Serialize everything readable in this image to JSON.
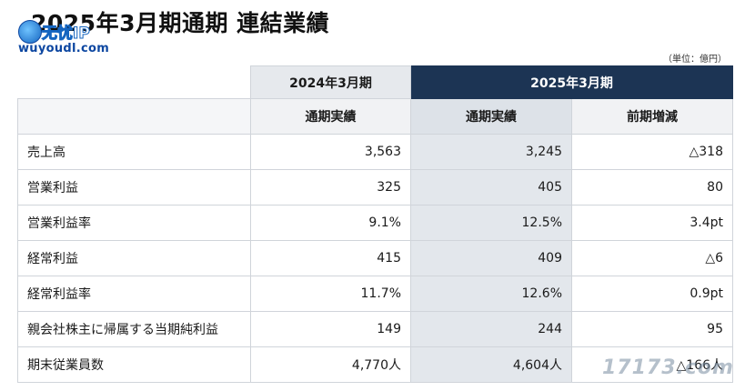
{
  "title": "2025年3月期通期 連結業績",
  "watermark": {
    "site_cn": "无忧IP",
    "site_url": "wuyoudl.com",
    "bottom": "17173.com"
  },
  "unit_note": "（単位：億円）",
  "header": {
    "fy2024": "2024年3月期",
    "fy2025": "2025年3月期",
    "col_actual_prev": "通期実績",
    "col_actual_cur": "通期実績",
    "col_change": "前期増減"
  },
  "rows": [
    {
      "label": "売上高",
      "prev": "3,563",
      "cur": "3,245",
      "change": "△318"
    },
    {
      "label": "営業利益",
      "prev": "325",
      "cur": "405",
      "change": "80"
    },
    {
      "label": "営業利益率",
      "prev": "9.1%",
      "cur": "12.5%",
      "change": "3.4pt"
    },
    {
      "label": "経常利益",
      "prev": "415",
      "cur": "409",
      "change": "△6"
    },
    {
      "label": "経常利益率",
      "prev": "11.7%",
      "cur": "12.6%",
      "change": "0.9pt"
    },
    {
      "label": "親会社株主に帰属する当期純利益",
      "prev": "149",
      "cur": "244",
      "change": "95"
    },
    {
      "label": "期末従業員数",
      "prev": "4,770人",
      "cur": "4,604人",
      "change": "△166人"
    }
  ]
}
